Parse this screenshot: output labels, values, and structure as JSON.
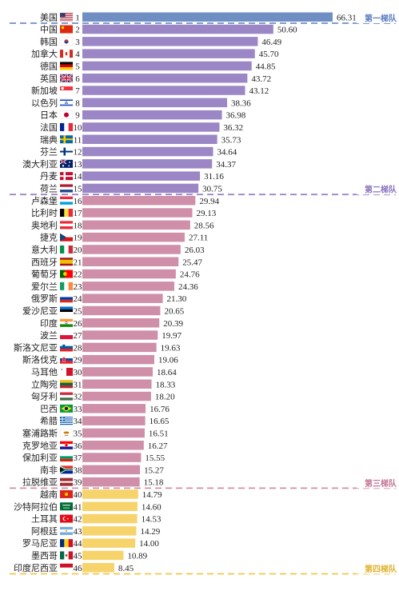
{
  "chart_data": {
    "type": "bar",
    "orientation": "horizontal",
    "xlim": [
      0,
      70
    ],
    "grid": false,
    "rows": [
      {
        "rank": 1,
        "country": "美国",
        "flag": "us",
        "value": 66.31,
        "tier": 1
      },
      {
        "rank": 2,
        "country": "中国",
        "flag": "cn",
        "value": 50.6,
        "tier": 2
      },
      {
        "rank": 3,
        "country": "韩国",
        "flag": "kr",
        "value": 46.49,
        "tier": 2
      },
      {
        "rank": 4,
        "country": "加拿大",
        "flag": "ca",
        "value": 45.7,
        "tier": 2
      },
      {
        "rank": 5,
        "country": "德国",
        "flag": "de",
        "value": 44.85,
        "tier": 2
      },
      {
        "rank": 6,
        "country": "英国",
        "flag": "gb",
        "value": 43.72,
        "tier": 2
      },
      {
        "rank": 7,
        "country": "新加坡",
        "flag": "sg",
        "value": 43.12,
        "tier": 2
      },
      {
        "rank": 8,
        "country": "以色列",
        "flag": "il",
        "value": 38.36,
        "tier": 2
      },
      {
        "rank": 9,
        "country": "日本",
        "flag": "jp",
        "value": 36.98,
        "tier": 2
      },
      {
        "rank": 10,
        "country": "法国",
        "flag": "fr",
        "value": 36.32,
        "tier": 2
      },
      {
        "rank": 11,
        "country": "瑞典",
        "flag": "se",
        "value": 35.73,
        "tier": 2
      },
      {
        "rank": 12,
        "country": "芬兰",
        "flag": "fi",
        "value": 34.64,
        "tier": 2
      },
      {
        "rank": 13,
        "country": "澳大利亚",
        "flag": "au",
        "value": 34.37,
        "tier": 2
      },
      {
        "rank": 14,
        "country": "丹麦",
        "flag": "dk",
        "value": 31.16,
        "tier": 2
      },
      {
        "rank": 15,
        "country": "荷兰",
        "flag": "nl",
        "value": 30.75,
        "tier": 2
      },
      {
        "rank": 16,
        "country": "卢森堡",
        "flag": "lu",
        "value": 29.94,
        "tier": 3
      },
      {
        "rank": 17,
        "country": "比利时",
        "flag": "be",
        "value": 29.13,
        "tier": 3
      },
      {
        "rank": 18,
        "country": "奥地利",
        "flag": "at",
        "value": 28.56,
        "tier": 3
      },
      {
        "rank": 19,
        "country": "捷克",
        "flag": "cz",
        "value": 27.11,
        "tier": 3
      },
      {
        "rank": 20,
        "country": "意大利",
        "flag": "it",
        "value": 26.03,
        "tier": 3
      },
      {
        "rank": 21,
        "country": "西班牙",
        "flag": "es",
        "value": 25.47,
        "tier": 3
      },
      {
        "rank": 22,
        "country": "葡萄牙",
        "flag": "pt",
        "value": 24.76,
        "tier": 3
      },
      {
        "rank": 23,
        "country": "爱尔兰",
        "flag": "ie",
        "value": 24.36,
        "tier": 3
      },
      {
        "rank": 24,
        "country": "俄罗斯",
        "flag": "ru",
        "value": 21.3,
        "tier": 3
      },
      {
        "rank": 25,
        "country": "爱沙尼亚",
        "flag": "ee",
        "value": 20.65,
        "tier": 3
      },
      {
        "rank": 26,
        "country": "印度",
        "flag": "in",
        "value": 20.39,
        "tier": 3
      },
      {
        "rank": 27,
        "country": "波兰",
        "flag": "pl",
        "value": 19.97,
        "tier": 3
      },
      {
        "rank": 28,
        "country": "斯洛文尼亚",
        "flag": "si",
        "value": 19.63,
        "tier": 3
      },
      {
        "rank": 29,
        "country": "斯洛伐克",
        "flag": "sk",
        "value": 19.06,
        "tier": 3
      },
      {
        "rank": 30,
        "country": "马耳他",
        "flag": "mt",
        "value": 18.64,
        "tier": 3
      },
      {
        "rank": 31,
        "country": "立陶宛",
        "flag": "lt",
        "value": 18.33,
        "tier": 3
      },
      {
        "rank": 32,
        "country": "匈牙利",
        "flag": "hu",
        "value": 18.2,
        "tier": 3
      },
      {
        "rank": 33,
        "country": "巴西",
        "flag": "br",
        "value": 16.76,
        "tier": 3
      },
      {
        "rank": 34,
        "country": "希腊",
        "flag": "gr",
        "value": 16.65,
        "tier": 3
      },
      {
        "rank": 35,
        "country": "塞浦路斯",
        "flag": "cy",
        "value": 16.51,
        "tier": 3
      },
      {
        "rank": 36,
        "country": "克罗地亚",
        "flag": "hr",
        "value": 16.27,
        "tier": 3
      },
      {
        "rank": 37,
        "country": "保加利亚",
        "flag": "bg",
        "value": 15.55,
        "tier": 3
      },
      {
        "rank": 38,
        "country": "南非",
        "flag": "za",
        "value": 15.27,
        "tier": 3
      },
      {
        "rank": 39,
        "country": "拉脱维亚",
        "flag": "lv",
        "value": 15.18,
        "tier": 3
      },
      {
        "rank": 40,
        "country": "越南",
        "flag": "vn",
        "value": 14.79,
        "tier": 4
      },
      {
        "rank": 41,
        "country": "沙特阿拉伯",
        "flag": "sa",
        "value": 14.6,
        "tier": 4
      },
      {
        "rank": 42,
        "country": "土耳其",
        "flag": "tr",
        "value": 14.53,
        "tier": 4
      },
      {
        "rank": 43,
        "country": "阿根廷",
        "flag": "ar",
        "value": 14.29,
        "tier": 4
      },
      {
        "rank": 44,
        "country": "罗马尼亚",
        "flag": "ro",
        "value": 14.0,
        "tier": 4
      },
      {
        "rank": 45,
        "country": "墨西哥",
        "flag": "mx",
        "value": 10.89,
        "tier": 4
      },
      {
        "rank": 46,
        "country": "印度尼西亚",
        "flag": "id",
        "value": 8.45,
        "tier": 4
      }
    ],
    "tiers": [
      {
        "id": 1,
        "label": "第一梯队",
        "bar_color": "#6f8fc4",
        "line_color": "#6f8fc4",
        "label_color": "#5a7bbf"
      },
      {
        "id": 2,
        "label": "第二梯队",
        "bar_color": "#9b86c6",
        "line_color": "#9b86c6",
        "label_color": "#8a73bd"
      },
      {
        "id": 3,
        "label": "第三梯队",
        "bar_color": "#cf8fa8",
        "line_color": "#cf8fa8",
        "label_color": "#c27795"
      },
      {
        "id": 4,
        "label": "第四梯队",
        "bar_color": "#f7d36b",
        "line_color": "#f0c94a",
        "label_color": "#e0b22e"
      }
    ]
  }
}
